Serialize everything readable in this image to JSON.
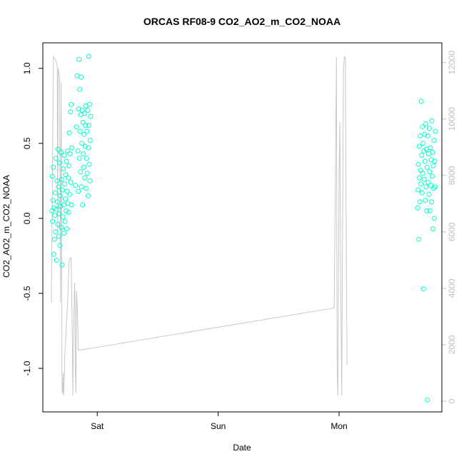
{
  "chart_data": {
    "type": "scatter",
    "title": "ORCAS RF08-9 CO2_AO2_m_CO2_NOAA",
    "xlabel": "Date",
    "ylabel": "CO2_AO2_m_CO2_NOAA",
    "xlim": [
      -0.45,
      2.85
    ],
    "ylim": [
      -1.29,
      1.17
    ],
    "y2lim": [
      -380,
      12700
    ],
    "x_ticks": [
      {
        "value": 0,
        "label": "Sat"
      },
      {
        "value": 1,
        "label": "Sun"
      },
      {
        "value": 2,
        "label": "Mon"
      }
    ],
    "y_ticks": [
      {
        "value": -1.0,
        "label": "-1.0"
      },
      {
        "value": -0.5,
        "label": "-0.5"
      },
      {
        "value": 0.0,
        "label": "0.0"
      },
      {
        "value": 0.5,
        "label": "0.5"
      },
      {
        "value": 1.0,
        "label": "1.0"
      }
    ],
    "y2_ticks": [
      {
        "value": 0,
        "label": "0"
      },
      {
        "value": 2000,
        "label": "2000"
      },
      {
        "value": 4000,
        "label": "4000"
      },
      {
        "value": 6000,
        "label": "6000"
      },
      {
        "value": 8000,
        "label": "8000"
      },
      {
        "value": 10000,
        "label": "10000"
      },
      {
        "value": 12000,
        "label": "12000"
      }
    ],
    "grid": false,
    "colors": {
      "points": "#00ffcc",
      "altitude": "#c8c8c8",
      "right_axis": "#bfbfbf",
      "axis": "#000000"
    },
    "series": [
      {
        "type": "scatter",
        "axis": "left",
        "points": [
          [
            -0.375,
            0.05
          ],
          [
            -0.372,
            0.28
          ],
          [
            -0.369,
            -0.02
          ],
          [
            -0.366,
            0.12
          ],
          [
            -0.363,
            0.34
          ],
          [
            -0.36,
            -0.24
          ],
          [
            -0.357,
            0.07
          ],
          [
            -0.354,
            -0.14
          ],
          [
            -0.351,
            0.02
          ],
          [
            -0.348,
            0.17
          ],
          [
            -0.345,
            -0.09
          ],
          [
            -0.342,
            0.4
          ],
          [
            -0.339,
            0.06
          ],
          [
            -0.336,
            -0.28
          ],
          [
            -0.333,
            0.25
          ],
          [
            -0.33,
            0.11
          ],
          [
            -0.327,
            -0.04
          ],
          [
            -0.324,
            0.46
          ],
          [
            -0.321,
            0.21
          ],
          [
            -0.318,
            -0.12
          ],
          [
            -0.315,
            0.03
          ],
          [
            -0.312,
            0.37
          ],
          [
            -0.309,
            -0.18
          ],
          [
            -0.306,
            0.15
          ],
          [
            -0.303,
            0.08
          ],
          [
            -0.3,
            0.44
          ],
          [
            -0.297,
            -0.06
          ],
          [
            -0.294,
            0.26
          ],
          [
            -0.291,
            -0.31
          ],
          [
            -0.288,
            0.19
          ],
          [
            -0.285,
            0.01
          ],
          [
            -0.282,
            0.33
          ],
          [
            -0.279,
            0.09
          ],
          [
            -0.276,
            -0.1
          ],
          [
            -0.273,
            0.42
          ],
          [
            -0.27,
            0.23
          ],
          [
            -0.267,
            -0.02
          ],
          [
            -0.264,
            0.13
          ],
          [
            -0.261,
            0.29
          ],
          [
            -0.258,
            0.05
          ],
          [
            -0.255,
            0.38
          ],
          [
            -0.252,
            -0.07
          ],
          [
            -0.249,
            0.18
          ],
          [
            -0.246,
            0.45
          ],
          [
            -0.243,
            0.1
          ],
          [
            -0.24,
            0.27
          ],
          [
            -0.237,
            0.04
          ],
          [
            -0.234,
            0.35
          ],
          [
            -0.231,
            0.57
          ],
          [
            -0.228,
            0.16
          ],
          [
            -0.225,
            0.43
          ],
          [
            -0.222,
            0.71
          ],
          [
            -0.219,
            0.24
          ],
          [
            -0.216,
            0.76
          ],
          [
            -0.213,
            0.09
          ],
          [
            -0.21,
            0.47
          ],
          [
            -0.18,
            0.22
          ],
          [
            -0.172,
            0.61
          ],
          [
            -0.166,
            0.95
          ],
          [
            -0.16,
            0.45
          ],
          [
            -0.157,
            0.18
          ],
          [
            -0.154,
            0.73
          ],
          [
            -0.151,
            1.06
          ],
          [
            -0.148,
            0.4
          ],
          [
            -0.145,
            0.86
          ],
          [
            -0.142,
            0.58
          ],
          [
            -0.139,
            0.31
          ],
          [
            -0.136,
            0.69
          ],
          [
            -0.133,
            0.94
          ],
          [
            -0.13,
            0.21
          ],
          [
            -0.127,
            0.5
          ],
          [
            -0.124,
            0.72
          ],
          [
            -0.121,
            0.09
          ],
          [
            -0.118,
            0.64
          ],
          [
            -0.115,
            0.43
          ],
          [
            -0.112,
            0.34
          ],
          [
            -0.109,
            0.56
          ],
          [
            -0.106,
            0.7
          ],
          [
            -0.103,
            0.27
          ],
          [
            -0.1,
            0.48
          ],
          [
            -0.097,
            0.62
          ],
          [
            -0.094,
            0.75
          ],
          [
            -0.091,
            0.2
          ],
          [
            -0.088,
            0.4
          ],
          [
            -0.085,
            0.58
          ],
          [
            -0.082,
            0.3
          ],
          [
            -0.079,
            0.72
          ],
          [
            -0.076,
            0.15
          ],
          [
            -0.073,
            0.47
          ],
          [
            -0.07,
            0.62
          ],
          [
            -0.067,
            0.36
          ],
          [
            -0.064,
            0.76
          ],
          [
            -0.061,
            0.25
          ],
          [
            -0.058,
            0.52
          ],
          [
            -0.055,
            0.68
          ],
          [
            -0.07,
            1.08
          ],
          [
            2.65,
            0.07
          ],
          [
            2.653,
            0.19
          ],
          [
            2.656,
            0.36
          ],
          [
            2.659,
            -0.14
          ],
          [
            2.662,
            0.48
          ],
          [
            2.665,
            0.27
          ],
          [
            2.668,
            0.11
          ],
          [
            2.671,
            0.55
          ],
          [
            2.674,
            0.32
          ],
          [
            2.677,
            0.23
          ],
          [
            2.68,
            0.78
          ],
          [
            2.683,
            0.42
          ],
          [
            2.686,
            0.17
          ],
          [
            2.689,
            0.61
          ],
          [
            2.692,
            0.3
          ],
          [
            2.695,
            0.5
          ],
          [
            2.698,
            -0.47
          ],
          [
            2.701,
            0.45
          ],
          [
            2.704,
            0.26
          ],
          [
            2.707,
            0.56
          ],
          [
            2.71,
            0.38
          ],
          [
            2.713,
            0.12
          ],
          [
            2.716,
            0.63
          ],
          [
            2.719,
            0.21
          ],
          [
            2.722,
            0.46
          ],
          [
            2.725,
            0.05
          ],
          [
            2.728,
            0.34
          ],
          [
            2.731,
            -1.21
          ],
          [
            2.734,
            0.55
          ],
          [
            2.737,
            0.24
          ],
          [
            2.74,
            0.43
          ],
          [
            2.743,
            0.16
          ],
          [
            2.746,
            0.6
          ],
          [
            2.749,
            0.31
          ],
          [
            2.752,
            0.05
          ],
          [
            2.755,
            0.47
          ],
          [
            2.758,
            0.22
          ],
          [
            2.761,
            0.39
          ],
          [
            2.764,
            0.11
          ],
          [
            2.767,
            0.65
          ],
          [
            2.77,
            0.28
          ],
          [
            2.773,
            0.44
          ],
          [
            2.776,
            -0.07
          ],
          [
            2.779,
            0.35
          ],
          [
            2.782,
            0.2
          ],
          [
            2.785,
            0.52
          ],
          [
            2.788,
            0.0
          ],
          [
            2.791,
            0.38
          ],
          [
            2.794,
            0.21
          ],
          [
            2.797,
            0.58
          ]
        ]
      },
      {
        "type": "line",
        "axis": "right",
        "points": [
          [
            -0.38,
            3500
          ],
          [
            -0.362,
            12200
          ],
          [
            -0.345,
            12100
          ],
          [
            -0.331,
            11900
          ],
          [
            -0.327,
            6000
          ],
          [
            -0.323,
            11800
          ],
          [
            -0.311,
            11500
          ],
          [
            -0.304,
            3500
          ],
          [
            -0.298,
            11300
          ],
          [
            -0.295,
            7200
          ],
          [
            -0.292,
            1000
          ],
          [
            -0.29,
            300
          ],
          [
            -0.286,
            300
          ],
          [
            -0.282,
            1000
          ],
          [
            -0.278,
            200
          ],
          [
            -0.272,
            900
          ],
          [
            -0.269,
            1600
          ],
          [
            -0.245,
            3500
          ],
          [
            -0.232,
            5000
          ],
          [
            -0.216,
            5100
          ],
          [
            -0.206,
            2500
          ],
          [
            -0.202,
            200
          ],
          [
            -0.198,
            1500
          ],
          [
            -0.188,
            4200
          ],
          [
            -0.183,
            3600
          ],
          [
            -0.18,
            1000
          ],
          [
            -0.176,
            300
          ],
          [
            -0.17,
            3900
          ],
          [
            -0.162,
            2800
          ],
          [
            -0.156,
            1800
          ],
          [
            1.96,
            3300
          ],
          [
            1.978,
            12200
          ],
          [
            1.984,
            1100
          ],
          [
            1.99,
            200
          ],
          [
            2.0,
            8000
          ],
          [
            2.006,
            9900
          ],
          [
            2.014,
            4000
          ],
          [
            2.022,
            200
          ],
          [
            2.036,
            11800
          ],
          [
            2.044,
            12200
          ],
          [
            2.052,
            12200
          ],
          [
            2.06,
            5000
          ],
          [
            2.066,
            1300
          ]
        ]
      }
    ]
  }
}
